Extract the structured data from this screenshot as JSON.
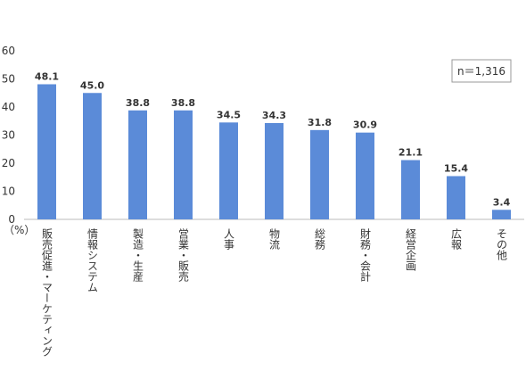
{
  "chart_data": {
    "type": "bar",
    "categories": [
      "販売促進・マーケティング",
      "情報システム",
      "製造・生産",
      "営業・販売",
      "人事",
      "物流",
      "総務",
      "財務・会計",
      "経営企画",
      "広報",
      "その他"
    ],
    "values": [
      48.1,
      45,
      38.8,
      38.8,
      34.5,
      34.3,
      31.8,
      30.9,
      21.1,
      15.4,
      3.4
    ],
    "value_labels": [
      "48.1",
      "45.0",
      "38.8",
      "38.8",
      "34.5",
      "34.3",
      "31.8",
      "30.9",
      "21.1",
      "15.4",
      "3.4"
    ],
    "color": "#5b8bd8",
    "ylim": [
      0,
      60
    ],
    "yticks": [
      0,
      10,
      20,
      30,
      40,
      50,
      60
    ],
    "grid": false,
    "y_unit": "（%）",
    "annotation": "n＝1,316"
  }
}
